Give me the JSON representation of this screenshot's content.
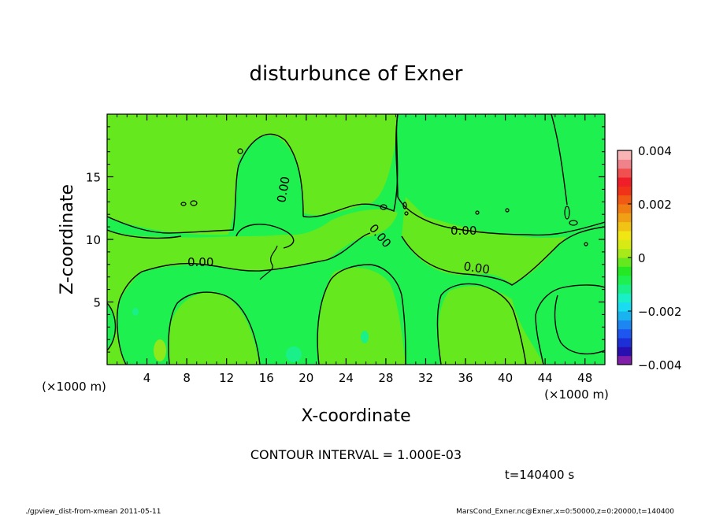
{
  "chart_data": {
    "type": "heatmap",
    "title": "disturbunce of Exner",
    "xlabel": "X-coordinate",
    "ylabel": "Z-coordinate",
    "x_unit": "(×1000 m)",
    "y_unit": "(×1000 m)",
    "xlim": [
      0,
      50
    ],
    "ylim": [
      0,
      20
    ],
    "x_ticks": [
      "4",
      "8",
      "12",
      "16",
      "20",
      "24",
      "28",
      "32",
      "36",
      "40",
      "44",
      "48"
    ],
    "y_ticks": [
      "5",
      "10",
      "15"
    ],
    "contour_interval_label": "CONTOUR INTERVAL = 1.000E-03",
    "contour_labels": [
      "0.00",
      "0.00",
      "0.00",
      "0.00"
    ],
    "time_label": "t=140400 s",
    "colorbar": {
      "ticks": [
        "0.004",
        "0.002",
        "0",
        "−0.002",
        "−0.004"
      ],
      "range": [
        -0.004,
        0.004
      ],
      "colors": [
        "#7f1ea8",
        "#2a0fb0",
        "#1d2fd6",
        "#1e56f0",
        "#1e86f0",
        "#19b4f0",
        "#19dcf0",
        "#19f0c8",
        "#19f08a",
        "#1ef050",
        "#23e823",
        "#66e81e",
        "#a8ea19",
        "#d8ea14",
        "#f0e614",
        "#f0c314",
        "#f0a014",
        "#f07d14",
        "#f05a14",
        "#f03219",
        "#f01e28",
        "#f05050",
        "#f0828c",
        "#f8b4b4"
      ]
    },
    "field_colors": {
      "near_zero_positive": "#66e81e",
      "near_zero_negative": "#1ef050",
      "small_negative": "#19f08a"
    }
  },
  "footer": {
    "left": "./gpview_dist-from-xmean  2011-05-11",
    "right": "MarsCond_Exner.nc@Exner,x=0:50000,z=0:20000,t=140400"
  }
}
